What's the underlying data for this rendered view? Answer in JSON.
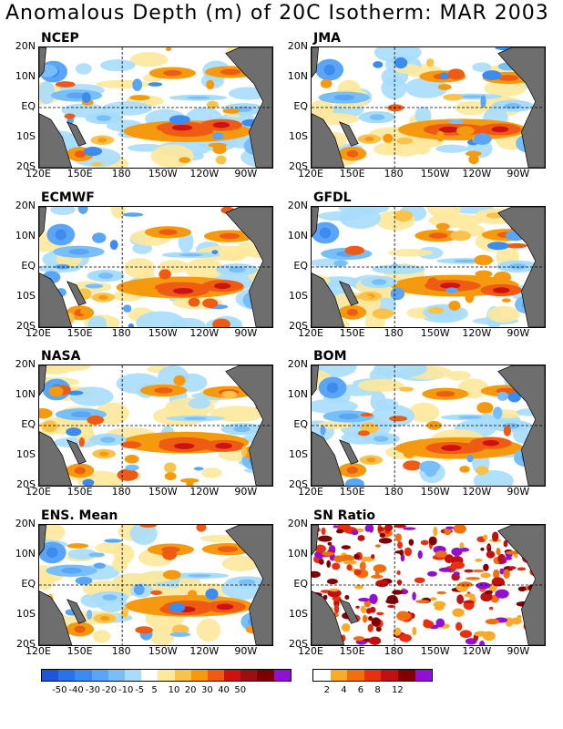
{
  "title": "Anomalous Depth (m) of 20C Isotherm: MAR 2003",
  "panels": [
    {
      "name": "NCEP"
    },
    {
      "name": "JMA"
    },
    {
      "name": "ECMWF"
    },
    {
      "name": "GFDL"
    },
    {
      "name": "NASA"
    },
    {
      "name": "BOM"
    },
    {
      "name": "ENS. Mean"
    },
    {
      "name": "SN Ratio"
    }
  ],
  "lat_labels": [
    "20N",
    "10N",
    "EQ",
    "10S",
    "20S"
  ],
  "lon_labels": [
    "120E",
    "150E",
    "180",
    "150W",
    "120W",
    "90W"
  ],
  "colorbar_anomaly": {
    "colors": [
      "#1f56d9",
      "#2a72e8",
      "#3c8cf0",
      "#5aa5f5",
      "#78bff9",
      "#a7ddfb",
      "#ffffff",
      "#fde89b",
      "#fbc24a",
      "#f59a0e",
      "#ef5b12",
      "#cd1212",
      "#9a0f0f",
      "#7a0000",
      "#9010d4"
    ],
    "labels": [
      "-50",
      "-40",
      "-30",
      "-20",
      "-10",
      "-5",
      "5",
      "10",
      "20",
      "30",
      "40",
      "50"
    ]
  },
  "colorbar_sn": {
    "colors": [
      "#ffffff",
      "#fbaa2a",
      "#f07010",
      "#e83010",
      "#c01010",
      "#800000",
      "#9010d4"
    ],
    "labels": [
      "2",
      "4",
      "6",
      "8",
      "12"
    ]
  }
}
